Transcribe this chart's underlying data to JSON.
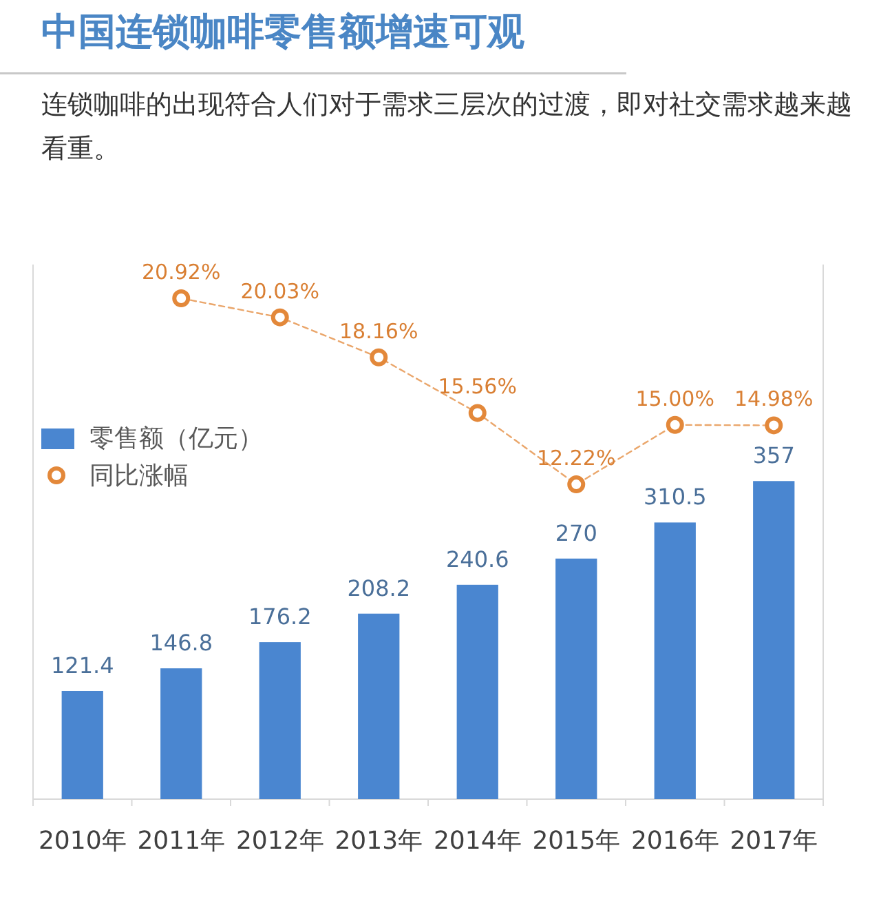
{
  "chart_data": {
    "type": "bar",
    "title": "中国连锁咖啡零售额增速可观",
    "subtitle": "连锁咖啡的出现符合人们对于需求三层次的过渡，即对社交需求越来越看重。",
    "categories": [
      "2010年",
      "2011年",
      "2012年",
      "2013年",
      "2014年",
      "2015年",
      "2016年",
      "2017年"
    ],
    "ylim": [
      0,
      600
    ],
    "y2lim": [
      -2.5,
      22.5
    ],
    "series": [
      {
        "name": "零售额（亿元）",
        "color": "#4a86d0",
        "values": [
          121.4,
          146.8,
          176.2,
          208.2,
          240.6,
          270,
          310.5,
          357
        ],
        "value_labels": [
          "121.4",
          "146.8",
          "176.2",
          "208.2",
          "240.6",
          "270",
          "310.5",
          "357"
        ]
      },
      {
        "name": "同比涨幅",
        "type": "line",
        "axis": "y2",
        "color": "#e3883a",
        "values": [
          null,
          20.92,
          20.03,
          18.16,
          15.56,
          12.22,
          15.0,
          14.98
        ],
        "value_labels": [
          null,
          "20.92%",
          "20.03%",
          "18.16%",
          "15.56%",
          "12.22%",
          "15.00%",
          "14.98%"
        ],
        "marker": "circle",
        "line_style": "dashed"
      }
    ],
    "legend": "top left"
  }
}
